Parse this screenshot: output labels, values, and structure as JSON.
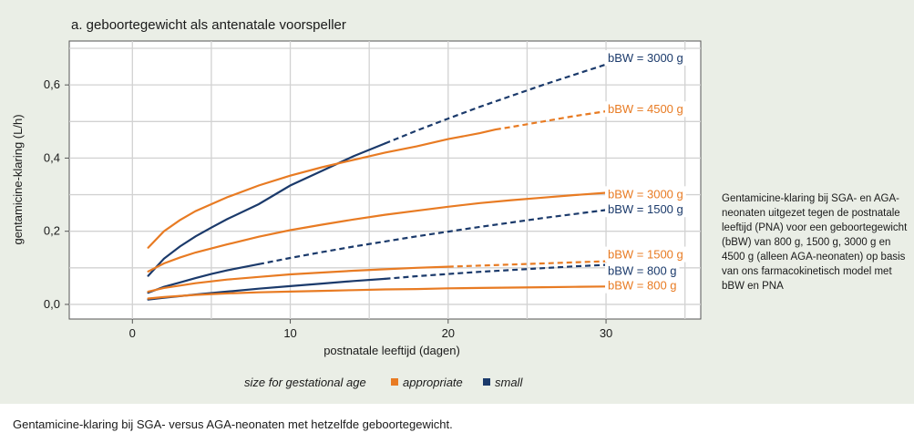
{
  "chart_data": {
    "type": "line",
    "title": "a. geboortegewicht als antenatale voorspeller",
    "xlabel": "postnatale leeftijd (dagen)",
    "ylabel": "gentamicine-klaring (L/h)",
    "xlim": [
      -4,
      36
    ],
    "ylim": [
      -0.04,
      0.72
    ],
    "xticks": [
      "0",
      "10",
      "20",
      "30"
    ],
    "xtick_values": [
      0,
      10,
      20,
      30
    ],
    "yticks": [
      "0,0",
      "0,2",
      "0,4",
      "0,6"
    ],
    "ytick_values": [
      0.0,
      0.2,
      0.4,
      0.6
    ],
    "grid": true,
    "legend": {
      "title": "size for gestational age",
      "position": "bottom",
      "entries": [
        {
          "label": "appropriate",
          "color": "#e87b23"
        },
        {
          "label": "small",
          "color": "#1b3a6b"
        }
      ]
    },
    "series": [
      {
        "name": "bBW = 3000 g",
        "group": "small",
        "color": "#1b3a6b",
        "x": [
          1,
          2,
          3,
          4,
          5,
          6,
          8,
          10,
          12,
          14,
          16,
          18,
          20,
          22,
          24,
          26,
          28,
          30
        ],
        "y": [
          0.078,
          0.125,
          0.158,
          0.186,
          0.21,
          0.233,
          0.274,
          0.325,
          0.365,
          0.405,
          0.44,
          0.475,
          0.508,
          0.54,
          0.57,
          0.6,
          0.628,
          0.656
        ],
        "solid_until": 16
      },
      {
        "name": "bBW = 4500 g",
        "group": "appropriate",
        "color": "#e87b23",
        "x": [
          1,
          2,
          3,
          4,
          6,
          8,
          10,
          12,
          14,
          16,
          18,
          20,
          22,
          23,
          24,
          26,
          28,
          30
        ],
        "y": [
          0.155,
          0.2,
          0.23,
          0.255,
          0.293,
          0.325,
          0.352,
          0.375,
          0.395,
          0.415,
          0.432,
          0.452,
          0.468,
          0.478,
          0.485,
          0.5,
          0.515,
          0.528
        ],
        "solid_until": 23
      },
      {
        "name": "bBW = 3000 g",
        "group": "appropriate",
        "color": "#e87b23",
        "x": [
          1,
          2,
          3,
          4,
          6,
          8,
          10,
          12,
          14,
          16,
          18,
          20,
          22,
          24,
          26,
          28,
          30
        ],
        "y": [
          0.09,
          0.112,
          0.128,
          0.142,
          0.164,
          0.185,
          0.203,
          0.218,
          0.232,
          0.245,
          0.256,
          0.267,
          0.277,
          0.285,
          0.292,
          0.299,
          0.305
        ],
        "solid_until": 30
      },
      {
        "name": "bBW = 1500 g",
        "group": "small",
        "color": "#1b3a6b",
        "x": [
          1,
          2,
          3,
          4,
          5,
          6,
          8,
          10,
          12,
          14,
          16,
          18,
          20,
          22,
          24,
          26,
          28,
          30
        ],
        "y": [
          0.032,
          0.048,
          0.06,
          0.072,
          0.083,
          0.093,
          0.11,
          0.127,
          0.143,
          0.158,
          0.172,
          0.186,
          0.199,
          0.212,
          0.224,
          0.236,
          0.247,
          0.258
        ],
        "solid_until": 8
      },
      {
        "name": "bBW = 1500 g",
        "group": "appropriate",
        "color": "#e87b23",
        "x": [
          1,
          2,
          4,
          6,
          8,
          10,
          12,
          14,
          16,
          18,
          20,
          22,
          24,
          26,
          28,
          30
        ],
        "y": [
          0.035,
          0.045,
          0.058,
          0.068,
          0.075,
          0.082,
          0.087,
          0.092,
          0.096,
          0.1,
          0.103,
          0.106,
          0.109,
          0.112,
          0.115,
          0.118
        ],
        "solid_until": 20
      },
      {
        "name": "bBW = 800 g",
        "group": "small",
        "color": "#1b3a6b",
        "x": [
          1,
          2,
          4,
          6,
          8,
          10,
          12,
          14,
          16,
          18,
          20,
          22,
          24,
          26,
          28,
          30
        ],
        "y": [
          0.013,
          0.018,
          0.027,
          0.035,
          0.043,
          0.05,
          0.057,
          0.064,
          0.07,
          0.077,
          0.083,
          0.089,
          0.094,
          0.099,
          0.104,
          0.108
        ],
        "solid_until": 16
      },
      {
        "name": "bBW = 800 g",
        "group": "appropriate",
        "color": "#e87b23",
        "x": [
          1,
          2,
          4,
          6,
          8,
          10,
          12,
          14,
          16,
          18,
          20,
          22,
          24,
          26,
          28,
          30
        ],
        "y": [
          0.016,
          0.02,
          0.026,
          0.03,
          0.033,
          0.035,
          0.037,
          0.039,
          0.041,
          0.042,
          0.044,
          0.045,
          0.046,
          0.047,
          0.048,
          0.049
        ],
        "solid_until": 30
      }
    ]
  },
  "labels": [
    {
      "text": "bBW = 3000 g",
      "color": "#1b3a6b",
      "y": 0.675
    },
    {
      "text": "bBW = 4500 g",
      "color": "#e87b23",
      "y": 0.535
    },
    {
      "text": "bBW = 3000 g",
      "color": "#e87b23",
      "y": 0.303
    },
    {
      "text": "bBW = 1500 g",
      "color": "#1b3a6b",
      "y": 0.261
    },
    {
      "text": "bBW = 1500 g",
      "color": "#e87b23",
      "y": 0.138
    },
    {
      "text": "bBW = 800 g",
      "color": "#1b3a6b",
      "y": 0.093
    },
    {
      "text": "bBW = 800 g",
      "color": "#e87b23",
      "y": 0.053
    }
  ],
  "side_note": "Gentamicine-klaring bij SGA- en AGA-neonaten uitgezet tegen de postnatale leeftijd (PNA) voor een geboortegewicht (bBW) van 800 g, 1500 g, 3000 g en 4500 g (alleen AGA-neonaten) op basis van ons farmacokinetisch model met bBW en PNA",
  "caption": "Gentamicine-klaring bij SGA- versus AGA-neonaten met hetzelfde geboortegewicht."
}
